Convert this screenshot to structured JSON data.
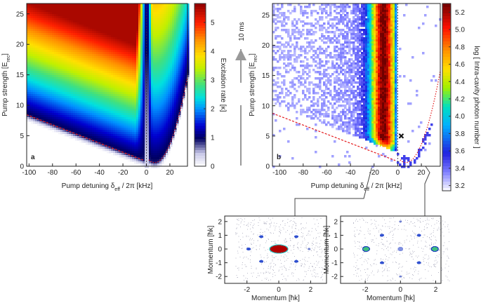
{
  "chart_data": [
    {
      "type": "heatmap",
      "panel_label": "a",
      "xlabel": [
        "Pump detuning δ",
        "eff",
        " / 2π  [kHz]"
      ],
      "ylabel": [
        "Pump strength  [E",
        "rec",
        "]"
      ],
      "xlim": [
        -102,
        35
      ],
      "xticks": [
        -100,
        -80,
        -60,
        -40,
        -20,
        0,
        20
      ],
      "ylim": [
        0,
        26.7
      ],
      "yticks": [
        0,
        5,
        10,
        15,
        20,
        25
      ],
      "colorbar": {
        "label": "Excitation rate [κ]",
        "lim": [
          0,
          5.66
        ],
        "ticks": [
          0,
          1,
          2,
          3,
          4,
          5
        ]
      }
    },
    {
      "type": "heatmap",
      "panel_label": "b",
      "annotation": "10 ms",
      "xlabel": [
        "Pump detuning δ",
        "eff",
        " / 2π  [kHz]"
      ],
      "ylabel": [
        "Pump strength  [E",
        "rec",
        "]"
      ],
      "xlim": [
        -106,
        36
      ],
      "xticks": [
        -100,
        -80,
        -60,
        -40,
        -20,
        0,
        20
      ],
      "ylim": [
        0,
        26.9
      ],
      "yticks": [
        0,
        5,
        10,
        15,
        20,
        25
      ],
      "colorbar": {
        "label": "log [ Intra-cavity photon number ]",
        "lim": [
          3.14,
          5.3
        ],
        "ticks": [
          3.2,
          3.4,
          3.6,
          3.8,
          {
            "value": 4,
            "label": "4.0"
          },
          4.2,
          4.4,
          4.6,
          4.8,
          {
            "value": 5,
            "label": "5.0"
          },
          5.2
        ]
      }
    },
    {
      "type": "heatmap",
      "xlabel": [
        "Momentum  [ħk]"
      ],
      "ylabel": [
        "Momentum  [ħk]"
      ],
      "xlim": [
        -3.4,
        3.0
      ],
      "xticks": [
        -2,
        0,
        2
      ],
      "ylim": [
        -2.5,
        2.4
      ],
      "yticks": [
        -2,
        -1,
        0,
        1,
        2
      ]
    },
    {
      "type": "heatmap",
      "xlabel": [
        "Momentum  [ħk]"
      ],
      "ylabel": [
        "Momentum  [ħk]"
      ],
      "xlim": [
        -3.4,
        2.3
      ],
      "xticks": [
        -2,
        0,
        2
      ],
      "ylim": [
        -2.5,
        2.4
      ],
      "yticks": [
        -2,
        -1,
        0,
        1,
        2
      ]
    }
  ]
}
